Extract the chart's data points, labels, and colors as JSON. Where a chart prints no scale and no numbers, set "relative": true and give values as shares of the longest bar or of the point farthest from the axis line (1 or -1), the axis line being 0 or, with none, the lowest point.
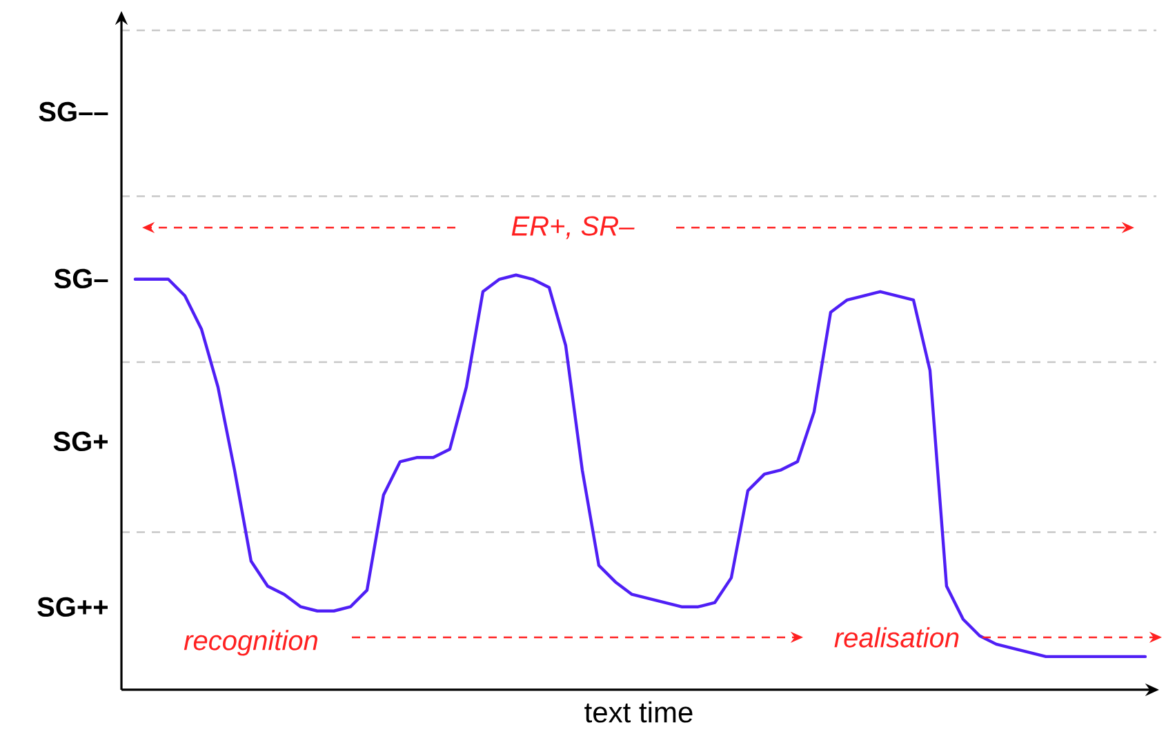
{
  "chart_data": {
    "type": "line",
    "xlabel": "text time",
    "relative": true,
    "categories": [
      null,
      null,
      null,
      null,
      null,
      null,
      null,
      null,
      null,
      null,
      null,
      null,
      null,
      null,
      null,
      null,
      null,
      null,
      null,
      null,
      null,
      null,
      null,
      null,
      null,
      null,
      null,
      null,
      null,
      null,
      null,
      null,
      null,
      null,
      null,
      null,
      null,
      null,
      null,
      null,
      null,
      null,
      null,
      null,
      null,
      null,
      null,
      null,
      null,
      null,
      null,
      null,
      null,
      null,
      null,
      null,
      null,
      null,
      null,
      null,
      null,
      null
    ],
    "series": [
      {
        "color": "#4f1ff5",
        "values": [
          0.99,
          0.99,
          0.99,
          0.95,
          0.87,
          0.73,
          0.53,
          0.31,
          0.25,
          0.23,
          0.2,
          0.19,
          0.19,
          0.2,
          0.24,
          0.47,
          0.55,
          0.56,
          0.56,
          0.58,
          0.73,
          0.96,
          0.99,
          1,
          0.99,
          0.97,
          0.83,
          0.53,
          0.3,
          0.26,
          0.23,
          0.22,
          0.21,
          0.2,
          0.2,
          0.21,
          0.27,
          0.48,
          0.52,
          0.53,
          0.55,
          0.67,
          0.91,
          0.94,
          0.95,
          0.96,
          0.95,
          0.94,
          0.77,
          0.25,
          0.17,
          0.13,
          0.11,
          0.1,
          0.09,
          0.08,
          0.08,
          0.08,
          0.08,
          0.08,
          0.08,
          0.08
        ]
      }
    ],
    "ref_lines": [
      {
        "axis": "y",
        "value": 0.38,
        "color": "#c8c8c8",
        "line_style": "dashed"
      },
      {
        "axis": "y",
        "value": 0.79,
        "color": "#c8c8c8",
        "line_style": "dashed"
      },
      {
        "axis": "y",
        "value": 1.19,
        "color": "#c8c8c8",
        "line_style": "dashed"
      },
      {
        "axis": "y",
        "value": 1.59,
        "color": "#c8c8c8",
        "line_style": "dashed"
      }
    ],
    "annotations": [
      "ER+, SR–",
      "recognition",
      "realisation",
      "SG––",
      "SG–",
      "SG+",
      "SG++"
    ]
  }
}
